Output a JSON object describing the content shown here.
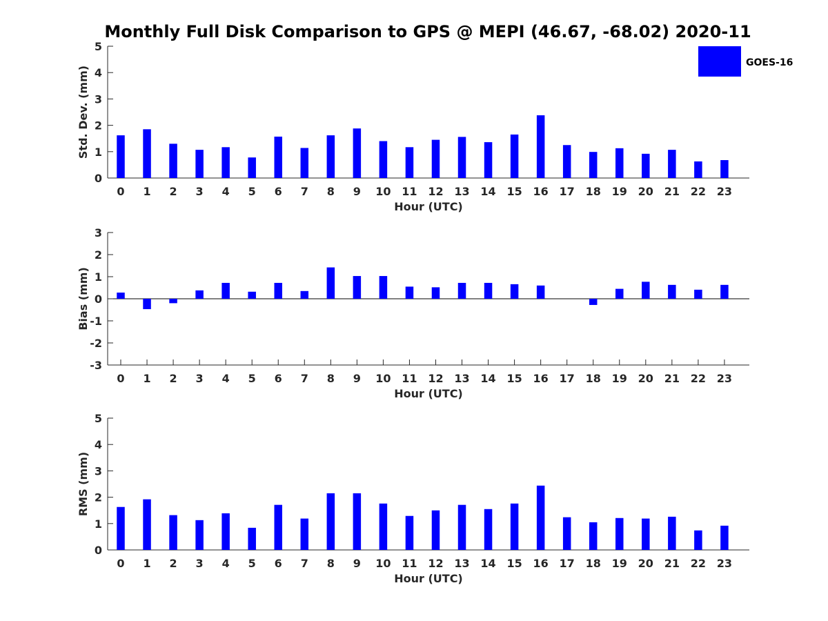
{
  "colors": {
    "bar": "#0000ff",
    "axis": "#262626",
    "background": "#ffffff"
  },
  "legend": {
    "label": "GOES-16",
    "placement": "top-right"
  },
  "chart_data": {
    "type": "bar",
    "title": "Monthly Full Disk Comparison to GPS @ MEPI (46.67, -68.02) 2020-11",
    "panels": [
      {
        "name": "std-dev",
        "ylabel": "Std. Dev. (mm)",
        "xlabel": "Hour (UTC)",
        "ylim": [
          0,
          5
        ],
        "yticks": [
          0,
          1,
          2,
          3,
          4,
          5
        ],
        "categories": [
          "0",
          "1",
          "2",
          "3",
          "4",
          "5",
          "6",
          "7",
          "8",
          "9",
          "10",
          "11",
          "12",
          "13",
          "14",
          "15",
          "16",
          "17",
          "18",
          "19",
          "20",
          "21",
          "22",
          "23"
        ],
        "series": [
          {
            "name": "GOES-16",
            "values": [
              1.62,
              1.85,
              1.3,
              1.07,
              1.17,
              0.78,
              1.57,
              1.14,
              1.62,
              1.88,
              1.4,
              1.17,
              1.45,
              1.56,
              1.36,
              1.65,
              2.38,
              1.25,
              0.99,
              1.13,
              0.92,
              1.07,
              0.63,
              0.68
            ]
          }
        ]
      },
      {
        "name": "bias",
        "ylabel": "Bias (mm)",
        "xlabel": "Hour (UTC)",
        "ylim": [
          -3,
          3
        ],
        "yticks": [
          -3,
          -2,
          -1,
          0,
          1,
          2,
          3
        ],
        "categories": [
          "0",
          "1",
          "2",
          "3",
          "4",
          "5",
          "6",
          "7",
          "8",
          "9",
          "10",
          "11",
          "12",
          "13",
          "14",
          "15",
          "16",
          "17",
          "18",
          "19",
          "20",
          "21",
          "22",
          "23"
        ],
        "series": [
          {
            "name": "GOES-16",
            "values": [
              0.28,
              -0.47,
              -0.2,
              0.38,
              0.72,
              0.32,
              0.72,
              0.35,
              1.42,
              1.03,
              1.03,
              0.55,
              0.52,
              0.72,
              0.72,
              0.66,
              0.6,
              0.0,
              -0.28,
              0.45,
              0.77,
              0.63,
              0.41,
              0.63
            ]
          }
        ]
      },
      {
        "name": "rms",
        "ylabel": "RMS (mm)",
        "xlabel": "Hour (UTC)",
        "ylim": [
          0,
          5
        ],
        "yticks": [
          0,
          1,
          2,
          3,
          4,
          5
        ],
        "categories": [
          "0",
          "1",
          "2",
          "3",
          "4",
          "5",
          "6",
          "7",
          "8",
          "9",
          "10",
          "11",
          "12",
          "13",
          "14",
          "15",
          "16",
          "17",
          "18",
          "19",
          "20",
          "21",
          "22",
          "23"
        ],
        "series": [
          {
            "name": "GOES-16",
            "values": [
              1.63,
              1.92,
              1.32,
              1.13,
              1.39,
              0.84,
              1.71,
              1.19,
              2.15,
              2.15,
              1.76,
              1.29,
              1.5,
              1.71,
              1.55,
              1.76,
              2.44,
              1.24,
              1.05,
              1.21,
              1.19,
              1.26,
              0.74,
              0.92
            ]
          }
        ]
      }
    ]
  }
}
